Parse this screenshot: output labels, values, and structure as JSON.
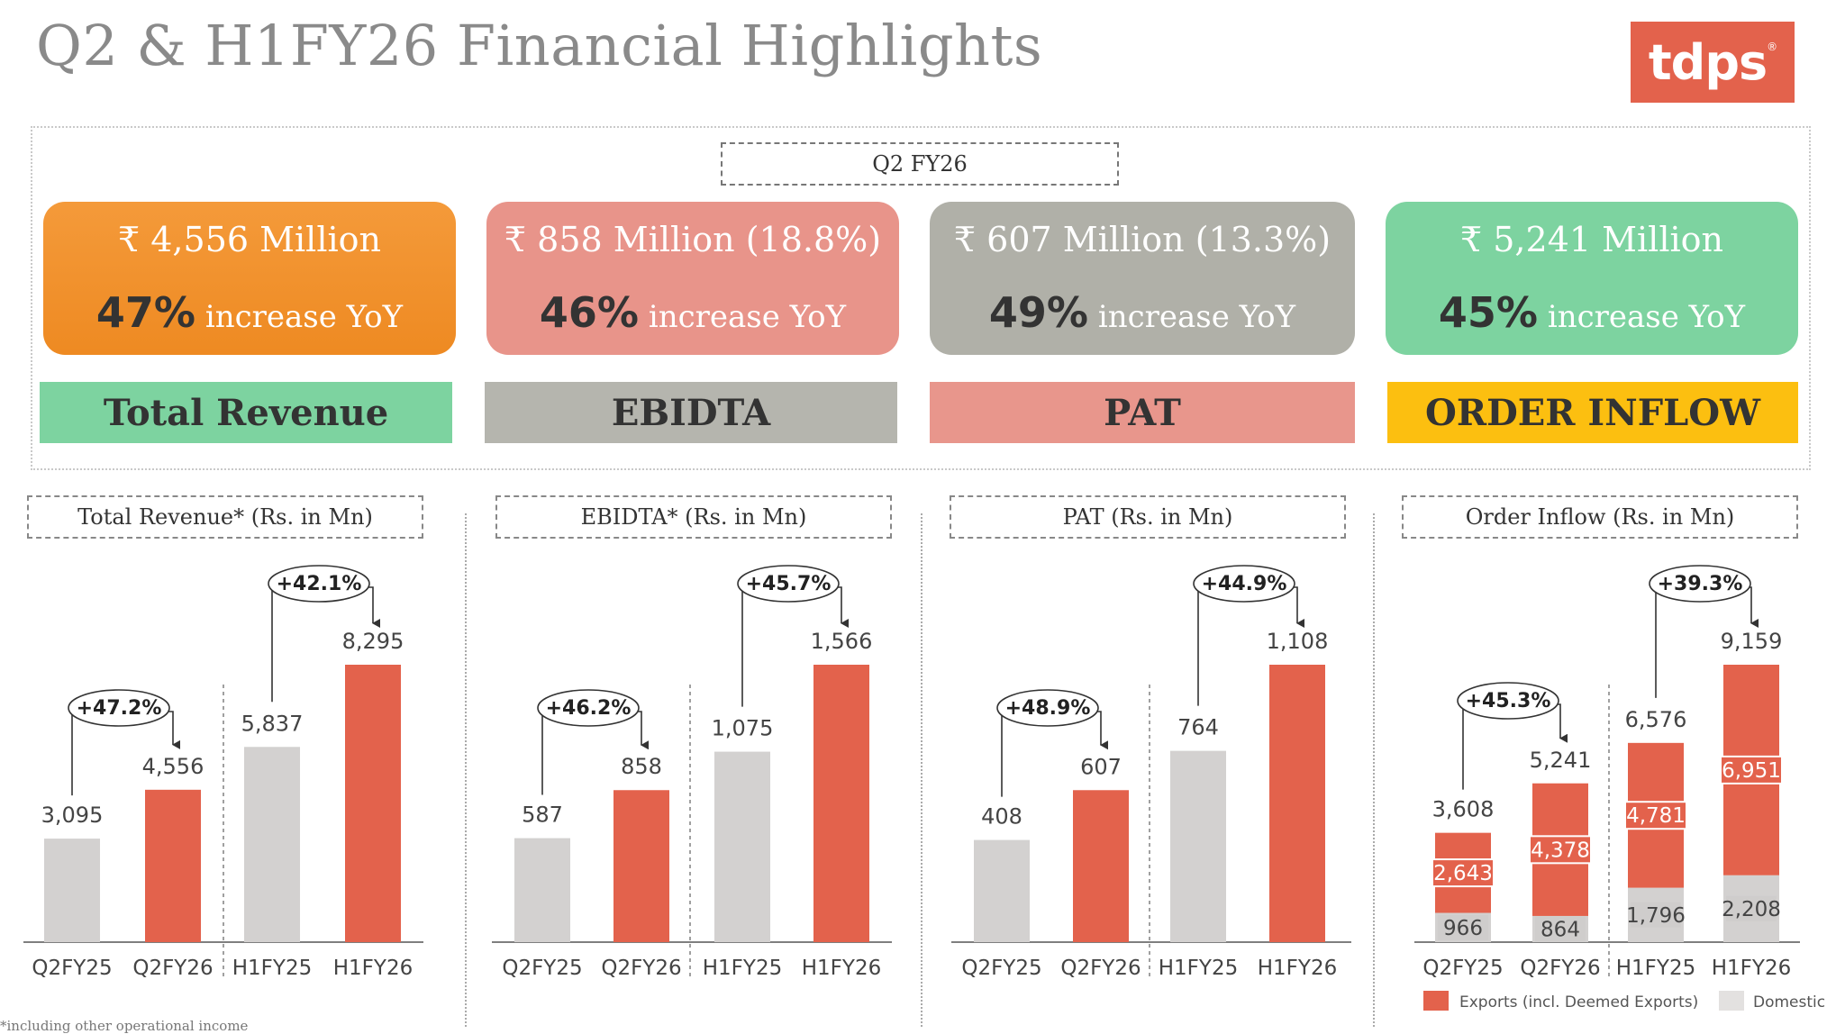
{
  "header": {
    "title": "Q2 & H1FY26 Financial Highlights",
    "logo_text": "tdps",
    "logo_mark": "®"
  },
  "kpi_section": {
    "period": "Q2 FY26",
    "cards": [
      {
        "amount": "₹ 4,556 Million",
        "pct": "47%",
        "suffix": " increase YoY",
        "label": "Total Revenue",
        "card_color": "#f49a3a",
        "label_color": "#7dd3a0"
      },
      {
        "amount": "₹ 858 Million (18.8%)",
        "pct": "46%",
        "suffix": " increase YoY",
        "label": "EBIDTA",
        "card_color": "#e8948a",
        "label_color": "#b5b5ae"
      },
      {
        "amount": "₹ 607  Million (13.3%)",
        "pct": "49%",
        "suffix": " increase YoY",
        "label": "PAT",
        "card_color": "#b0b0a8",
        "label_color": "#e8968c"
      },
      {
        "amount": "₹ 5,241 Million",
        "pct": "45%",
        "suffix": " increase YoY",
        "label": "ORDER INFLOW",
        "card_color": "#7dd3a0",
        "label_color": "#fcbf10"
      }
    ]
  },
  "colors": {
    "prior": "#d3d1d0",
    "current": "#e3624c",
    "text": "#444444"
  },
  "chart_data": [
    {
      "type": "bar",
      "title": "Total Revenue* (Rs. in Mn)",
      "categories": [
        "Q2FY25",
        "Q2FY26",
        "H1FY25",
        "H1FY26"
      ],
      "values": [
        3095,
        4556,
        5837,
        8295
      ],
      "value_labels": [
        "3,095",
        "4,556",
        "5,837",
        "8,295"
      ],
      "growth": [
        "+47.2%",
        "+42.1%"
      ]
    },
    {
      "type": "bar",
      "title": "EBIDTA* (Rs. in Mn)",
      "categories": [
        "Q2FY25",
        "Q2FY26",
        "H1FY25",
        "H1FY26"
      ],
      "values": [
        587,
        858,
        1075,
        1566
      ],
      "value_labels": [
        "587",
        "858",
        "1,075",
        "1,566"
      ],
      "growth": [
        "+46.2%",
        "+45.7%"
      ]
    },
    {
      "type": "bar",
      "title": "PAT (Rs. in Mn)",
      "categories": [
        "Q2FY25",
        "Q2FY26",
        "H1FY25",
        "H1FY26"
      ],
      "values": [
        408,
        607,
        764,
        1108
      ],
      "value_labels": [
        "408",
        "607",
        "764",
        "1,108"
      ],
      "growth": [
        "+48.9%",
        "+44.9%"
      ]
    },
    {
      "type": "bar",
      "stacked": true,
      "title": "Order Inflow (Rs. in Mn)",
      "categories": [
        "Q2FY25",
        "Q2FY26",
        "H1FY25",
        "H1FY26"
      ],
      "series": [
        {
          "name": "Domestic",
          "values": [
            966,
            864,
            1796,
            2208
          ],
          "labels": [
            "966",
            "864",
            "1,796",
            "2,208"
          ]
        },
        {
          "name": "Exports (incl. Deemed Exports)",
          "values": [
            2643,
            4378,
            4781,
            6951
          ],
          "labels": [
            "2,643",
            "4,378",
            "4,781",
            "6,951"
          ]
        }
      ],
      "totals": [
        3608,
        5241,
        6576,
        9159
      ],
      "total_labels": [
        "3,608",
        "5,241",
        "6,576",
        "9,159"
      ],
      "growth": [
        "+45.3%",
        "+39.3%"
      ],
      "legend": [
        "Exports (incl. Deemed Exports)",
        "Domestic"
      ]
    }
  ],
  "footnote": "*including other operational income"
}
